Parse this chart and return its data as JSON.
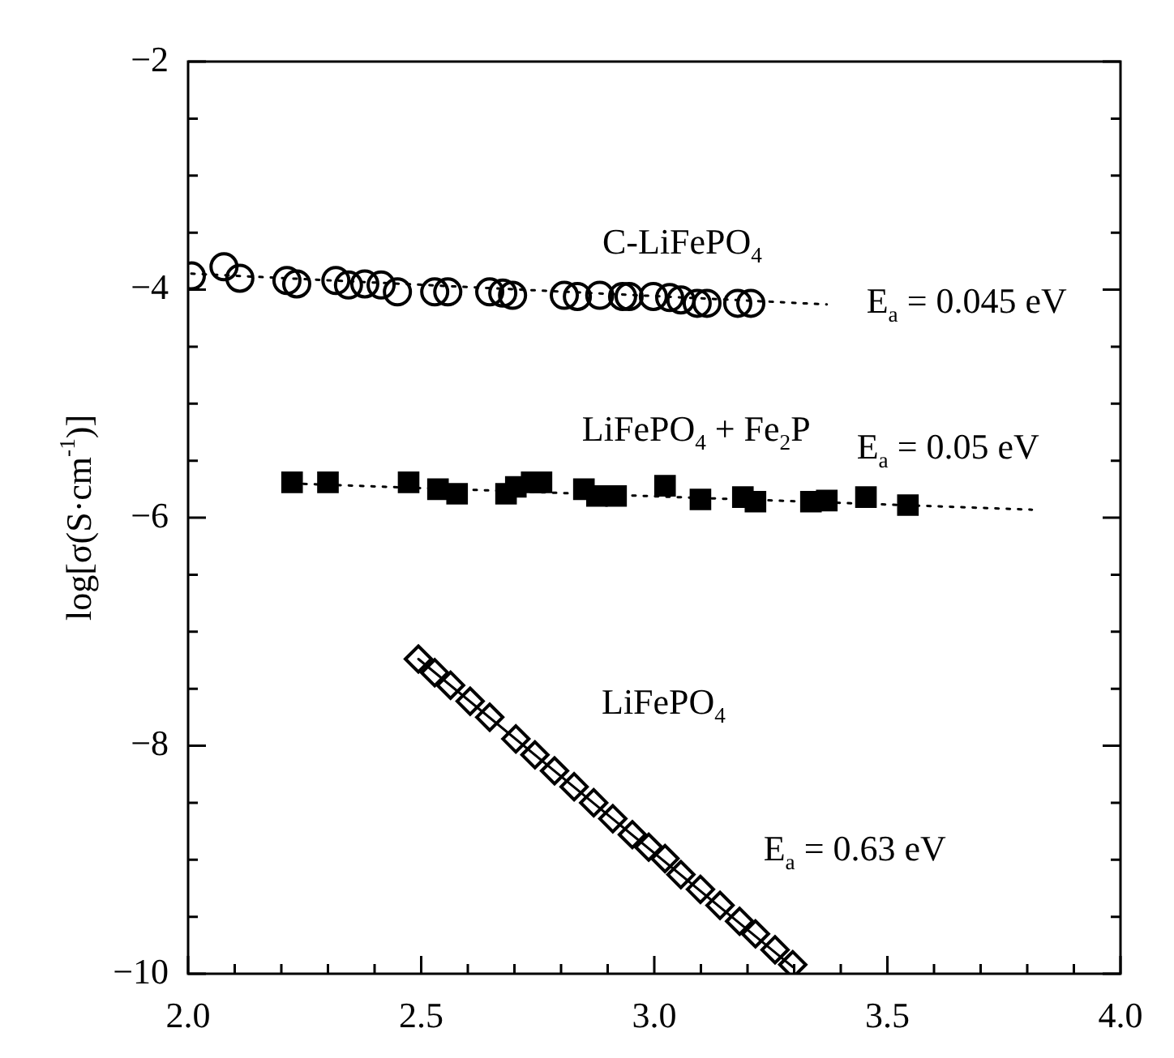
{
  "chart_data": {
    "type": "scatter",
    "ylabel": "log[σ(S·cm$^{-1}$)]",
    "xlim": [
      2.0,
      4.0
    ],
    "xticks": [
      {
        "value": 2,
        "label": "2.0"
      },
      {
        "value": 2.1,
        "label": null
      },
      {
        "value": 2.2,
        "label": null
      },
      {
        "value": 2.3,
        "label": null
      },
      {
        "value": 2.4,
        "label": null
      },
      {
        "value": 2.5,
        "label": "2.5"
      },
      {
        "value": 2.6,
        "label": null
      },
      {
        "value": 2.7,
        "label": null
      },
      {
        "value": 2.8,
        "label": null
      },
      {
        "value": 2.9,
        "label": null
      },
      {
        "value": 3,
        "label": "3.0"
      },
      {
        "value": 3.1,
        "label": null
      },
      {
        "value": 3.2,
        "label": null
      },
      {
        "value": 3.3,
        "label": null
      },
      {
        "value": 3.4,
        "label": null
      },
      {
        "value": 3.5,
        "label": "3.5"
      },
      {
        "value": 3.6,
        "label": null
      },
      {
        "value": 3.7,
        "label": null
      },
      {
        "value": 3.8,
        "label": null
      },
      {
        "value": 3.9,
        "label": null
      },
      {
        "value": 4,
        "label": "4.0"
      }
    ],
    "ylim": [
      -10,
      -2
    ],
    "yticks": [
      -10,
      {
        "value": -9.5,
        "label": null
      },
      {
        "value": -9,
        "label": null
      },
      {
        "value": -8.5,
        "label": null
      },
      -8,
      {
        "value": -7.5,
        "label": null
      },
      {
        "value": -7,
        "label": null
      },
      {
        "value": -6.5,
        "label": null
      },
      -6,
      {
        "value": -5.5,
        "label": null
      },
      {
        "value": -5,
        "label": null
      },
      {
        "value": -4.5,
        "label": null
      },
      -4,
      {
        "value": -3.5,
        "label": null
      },
      {
        "value": -3,
        "label": null
      },
      {
        "value": -2.5,
        "label": null
      },
      -2
    ],
    "grid": false,
    "legend": false,
    "series": [
      {
        "marker": "circle",
        "color": "#000000",
        "x": [
          2.007,
          2.077,
          2.111,
          2.212,
          2.233,
          2.317,
          2.344,
          2.379,
          2.414,
          2.449,
          2.529,
          2.557,
          2.647,
          2.675,
          2.696,
          2.807,
          2.835,
          2.883,
          2.932,
          2.946,
          2.998,
          3.033,
          3.057,
          3.092,
          3.113,
          3.179,
          3.207
        ],
        "values": [
          -3.88,
          -3.8,
          -3.9,
          -3.92,
          -3.95,
          -3.92,
          -3.96,
          -3.95,
          -3.96,
          -4.02,
          -4.02,
          -4.02,
          -4.02,
          -4.03,
          -4.05,
          -4.05,
          -4.06,
          -4.05,
          -4.06,
          -4.06,
          -4.06,
          -4.07,
          -4.09,
          -4.12,
          -4.12,
          -4.12,
          -4.12
        ]
      },
      {
        "type": "line",
        "marker": "none",
        "line_style": "dotted",
        "color": "#000000",
        "x": [
          2.007,
          3.37
        ],
        "values": [
          -3.86,
          -4.13
        ]
      },
      {
        "marker": "square",
        "color": "#000000",
        "x": [
          2.223,
          2.3,
          2.473,
          2.536,
          2.577,
          2.682,
          2.703,
          2.737,
          2.758,
          2.849,
          2.877,
          2.918,
          3.023,
          3.099,
          3.19,
          3.217,
          3.336,
          3.37,
          3.454,
          3.544
        ],
        "values": [
          -5.69,
          -5.69,
          -5.69,
          -5.75,
          -5.79,
          -5.79,
          -5.73,
          -5.69,
          -5.69,
          -5.75,
          -5.81,
          -5.81,
          -5.72,
          -5.84,
          -5.82,
          -5.86,
          -5.86,
          -5.85,
          -5.82,
          -5.89
        ]
      },
      {
        "type": "line",
        "marker": "none",
        "line_style": "dotted",
        "color": "#000000",
        "x": [
          2.223,
          3.81
        ],
        "values": [
          -5.7,
          -5.93
        ]
      },
      {
        "marker": "diamond",
        "color": "#000000",
        "x": [
          2.494,
          2.529,
          2.563,
          2.605,
          2.647,
          2.703,
          2.744,
          2.786,
          2.828,
          2.87,
          2.911,
          2.953,
          2.988,
          3.023,
          3.057,
          3.099,
          3.141,
          3.183,
          3.217,
          3.259,
          3.297
        ],
        "values": [
          -7.24,
          -7.36,
          -7.47,
          -7.61,
          -7.75,
          -7.94,
          -8.08,
          -8.22,
          -8.36,
          -8.5,
          -8.64,
          -8.78,
          -8.89,
          -8.99,
          -9.13,
          -9.26,
          -9.4,
          -9.54,
          -9.65,
          -9.79,
          -9.92
        ]
      },
      {
        "type": "line",
        "marker": "none",
        "line_style": "solid",
        "color": "#000000",
        "x": [
          2.494,
          3.297
        ],
        "values": [
          -7.24,
          -9.94
        ]
      }
    ],
    "annotations": [
      "C-LiFePO$_{4}$",
      "E$_{a}$ = 0.045 eV",
      "LiFePO$_{4}$ + Fe$_{2}$P",
      "E$_{a}$ = 0.05 eV",
      "LiFePO$_{4}$",
      "E$_{a}$ = 0.63 eV"
    ]
  }
}
